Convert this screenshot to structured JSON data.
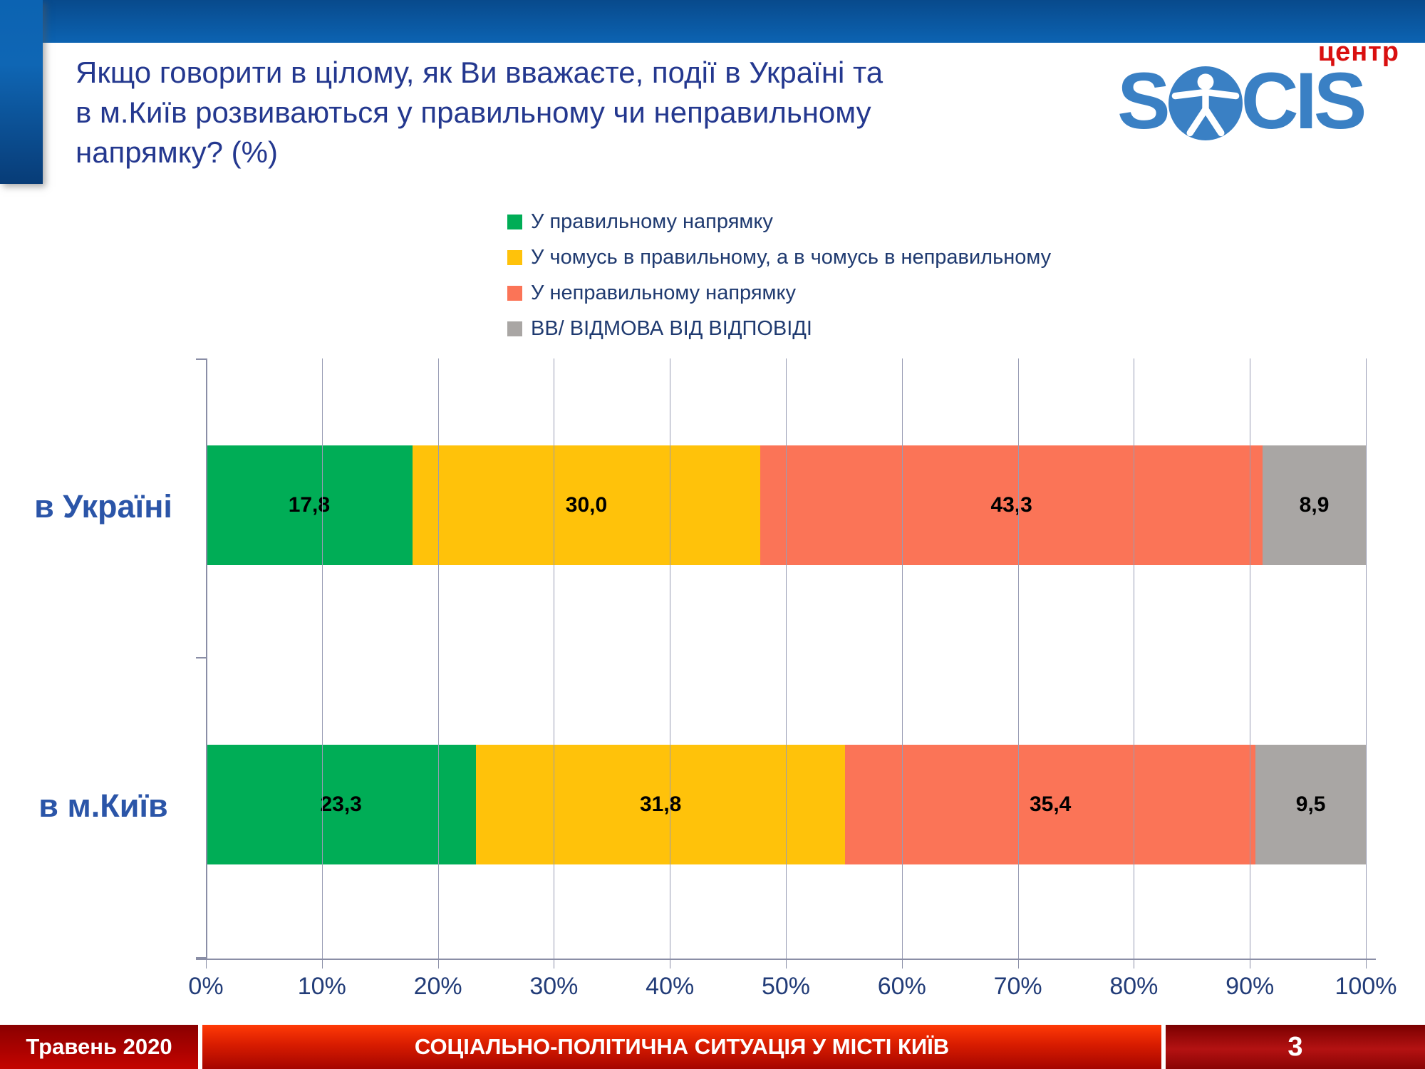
{
  "slide": {
    "title_lines": [
      "Якщо говорити в цілому, як Ви вважаєте, події в Україні та",
      "в м.Київ розвиваються у правильному чи неправильному",
      "напрямку? (%)"
    ],
    "logo": {
      "letter_s": "S",
      "letters_cis": "CIS",
      "center_label": "центр",
      "blue": "#3A80C4",
      "red": "#D90F0F"
    }
  },
  "chart_data": {
    "type": "bar",
    "orientation": "horizontal-stacked",
    "categories": [
      "в Україні",
      "в м.Київ"
    ],
    "series": [
      {
        "name": "У правильному напрямку",
        "color": "#00AD56",
        "values": [
          17.8,
          23.3
        ],
        "labels": [
          "17,8",
          "23,3"
        ]
      },
      {
        "name": "У чомусь в правильному, а в чомусь в неправильному",
        "color": "#FFC20A",
        "values": [
          30.0,
          31.8
        ],
        "labels": [
          "30,0",
          "31,8"
        ]
      },
      {
        "name": "У неправильному напрямку",
        "color": "#FB7457",
        "values": [
          43.3,
          35.4
        ],
        "labels": [
          "43,3",
          "35,4"
        ]
      },
      {
        "name": "ВВ/ ВІДМОВА ВІД ВІДПОВІДІ",
        "color": "#A9A6A4",
        "values": [
          8.9,
          9.5
        ],
        "labels": [
          "8,9",
          "9,5"
        ]
      }
    ],
    "xlim": [
      0,
      100
    ],
    "x_ticks": [
      "0%",
      "10%",
      "20%",
      "30%",
      "40%",
      "50%",
      "60%",
      "70%",
      "80%",
      "90%",
      "100%"
    ],
    "grid": true,
    "legend_position": "top"
  },
  "footer": {
    "date": "Травень 2020",
    "title": "СОЦІАЛЬНО-ПОЛІТИЧНА СИТУАЦІЯ У МІСТІ КИЇВ",
    "page": "3"
  }
}
